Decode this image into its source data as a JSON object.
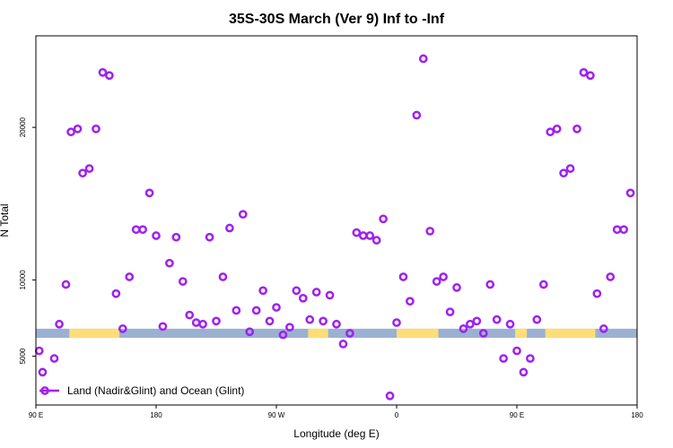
{
  "chart_data": {
    "type": "scatter",
    "title": "35S-30S March (Ver 9)   Inf to -Inf",
    "xlabel": "Longitude (deg E)",
    "ylabel": "N Total",
    "xlim": [
      90,
      450
    ],
    "ylim": [
      1800,
      26000
    ],
    "x_ticks": [
      {
        "value": 90,
        "label": "90 E"
      },
      {
        "value": 162,
        "label": "180"
      },
      {
        "value": 234,
        "label": "90 W"
      },
      {
        "value": 306,
        "label": "0"
      },
      {
        "value": 378,
        "label": "90 E"
      },
      {
        "value": 450,
        "label": "180"
      }
    ],
    "y_ticks": [
      {
        "value": 5000,
        "label": "5000"
      },
      {
        "value": 10000,
        "label": "10000"
      },
      {
        "value": 20000,
        "label": "20000"
      }
    ],
    "series": [
      {
        "name": "Land (Nadir&Glint) and Ocean (Glint)",
        "color": "#a020f0",
        "marker": "open-circle",
        "points": [
          [
            92,
            5350
          ],
          [
            94,
            3950
          ],
          [
            101,
            4850
          ],
          [
            104,
            7100
          ],
          [
            108,
            9700
          ],
          [
            111,
            19700
          ],
          [
            115,
            19900
          ],
          [
            118,
            17000
          ],
          [
            122,
            17300
          ],
          [
            126,
            19900
          ],
          [
            130,
            23600
          ],
          [
            134,
            23400
          ],
          [
            138,
            9100
          ],
          [
            142,
            6800
          ],
          [
            146,
            10200
          ],
          [
            150,
            13300
          ],
          [
            154,
            13300
          ],
          [
            158,
            15700
          ],
          [
            162,
            12900
          ],
          [
            166,
            6950
          ],
          [
            170,
            11100
          ],
          [
            174,
            12800
          ],
          [
            178,
            9900
          ],
          [
            182,
            7700
          ],
          [
            186,
            7200
          ],
          [
            190,
            7100
          ],
          [
            194,
            12800
          ],
          [
            198,
            7300
          ],
          [
            202,
            10200
          ],
          [
            206,
            13400
          ],
          [
            210,
            8000
          ],
          [
            214,
            14300
          ],
          [
            218,
            6600
          ],
          [
            222,
            8000
          ],
          [
            226,
            9300
          ],
          [
            230,
            7300
          ],
          [
            234,
            8200
          ],
          [
            238,
            6400
          ],
          [
            242,
            6900
          ],
          [
            246,
            9300
          ],
          [
            250,
            8800
          ],
          [
            254,
            7400
          ],
          [
            258,
            9200
          ],
          [
            262,
            7300
          ],
          [
            266,
            9000
          ],
          [
            270,
            7100
          ],
          [
            274,
            5800
          ],
          [
            278,
            6500
          ],
          [
            282,
            13100
          ],
          [
            286,
            12900
          ],
          [
            290,
            12900
          ],
          [
            294,
            12600
          ],
          [
            298,
            14000
          ],
          [
            302,
            2400
          ],
          [
            306,
            7200
          ],
          [
            310,
            10200
          ],
          [
            314,
            8600
          ],
          [
            318,
            20800
          ],
          [
            322,
            24500
          ],
          [
            326,
            13200
          ],
          [
            330,
            9900
          ],
          [
            334,
            10200
          ],
          [
            338,
            7900
          ],
          [
            342,
            9500
          ],
          [
            346,
            6800
          ],
          [
            350,
            7100
          ],
          [
            354,
            7300
          ],
          [
            358,
            6500
          ],
          [
            362,
            9700
          ],
          [
            366,
            7400
          ],
          [
            370,
            4850
          ],
          [
            374,
            7100
          ],
          [
            378,
            5350
          ],
          [
            382,
            3950
          ],
          [
            386,
            4850
          ],
          [
            390,
            7400
          ],
          [
            394,
            9700
          ],
          [
            398,
            19700
          ],
          [
            402,
            19900
          ],
          [
            406,
            17000
          ],
          [
            410,
            17300
          ],
          [
            414,
            19900
          ],
          [
            418,
            23600
          ],
          [
            422,
            23400
          ],
          [
            426,
            9100
          ],
          [
            430,
            6800
          ],
          [
            434,
            10200
          ],
          [
            438,
            13300
          ],
          [
            442,
            13300
          ],
          [
            446,
            15700
          ]
        ]
      }
    ],
    "legend": {
      "position": "bottom-left"
    },
    "grid": false,
    "map_strip": {
      "y_range": [
        6200,
        6800
      ],
      "ocean_color": "#9bb1d2",
      "land_color": "#ffdd77",
      "land_spans": [
        [
          110,
          140
        ],
        [
          253,
          265
        ],
        [
          306,
          331
        ],
        [
          377,
          384
        ],
        [
          395,
          425
        ]
      ]
    }
  }
}
